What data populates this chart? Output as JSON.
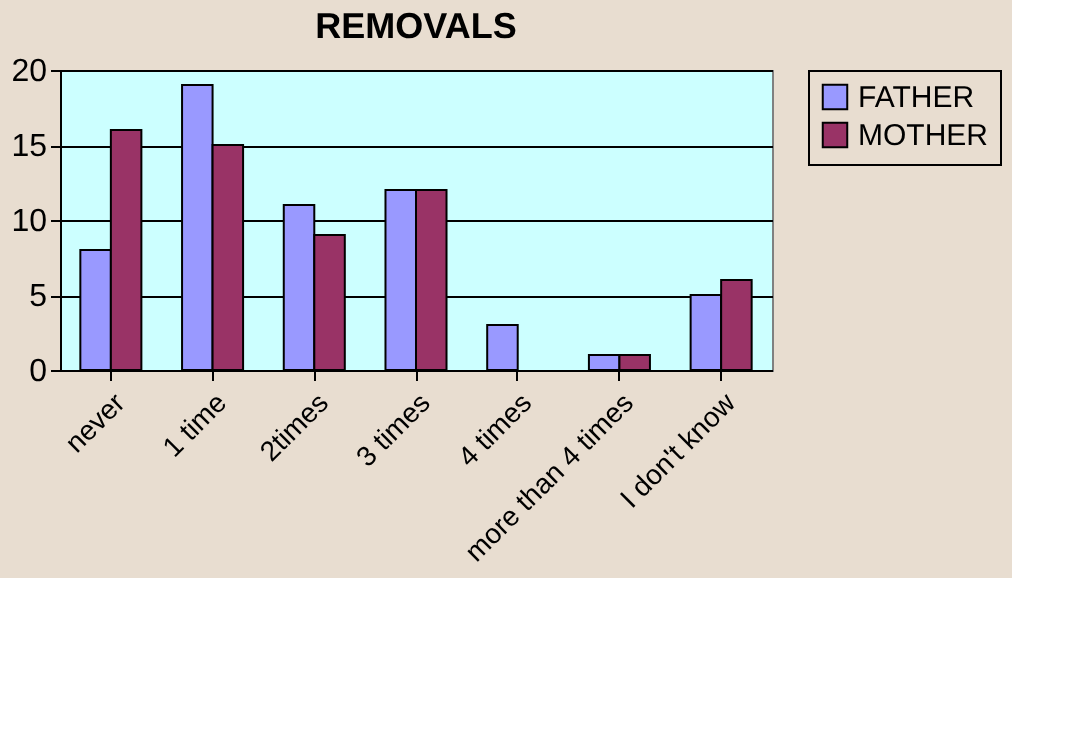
{
  "chart_data": {
    "type": "bar",
    "title": "REMOVALS",
    "categories": [
      "never",
      "1 time",
      "2times",
      "3 times",
      "4 times",
      "more than 4 times",
      "I don't know"
    ],
    "series": [
      {
        "name": "FATHER",
        "color": "#9999ff",
        "values": [
          8,
          19,
          11,
          12,
          3,
          1,
          5
        ]
      },
      {
        "name": "MOTHER",
        "color": "#993366",
        "values": [
          16,
          15,
          9,
          12,
          null,
          1,
          6
        ]
      }
    ],
    "ylim": [
      0,
      20
    ],
    "yticks": [
      0,
      5,
      10,
      15,
      20
    ],
    "grid": "y",
    "legend": "right"
  }
}
